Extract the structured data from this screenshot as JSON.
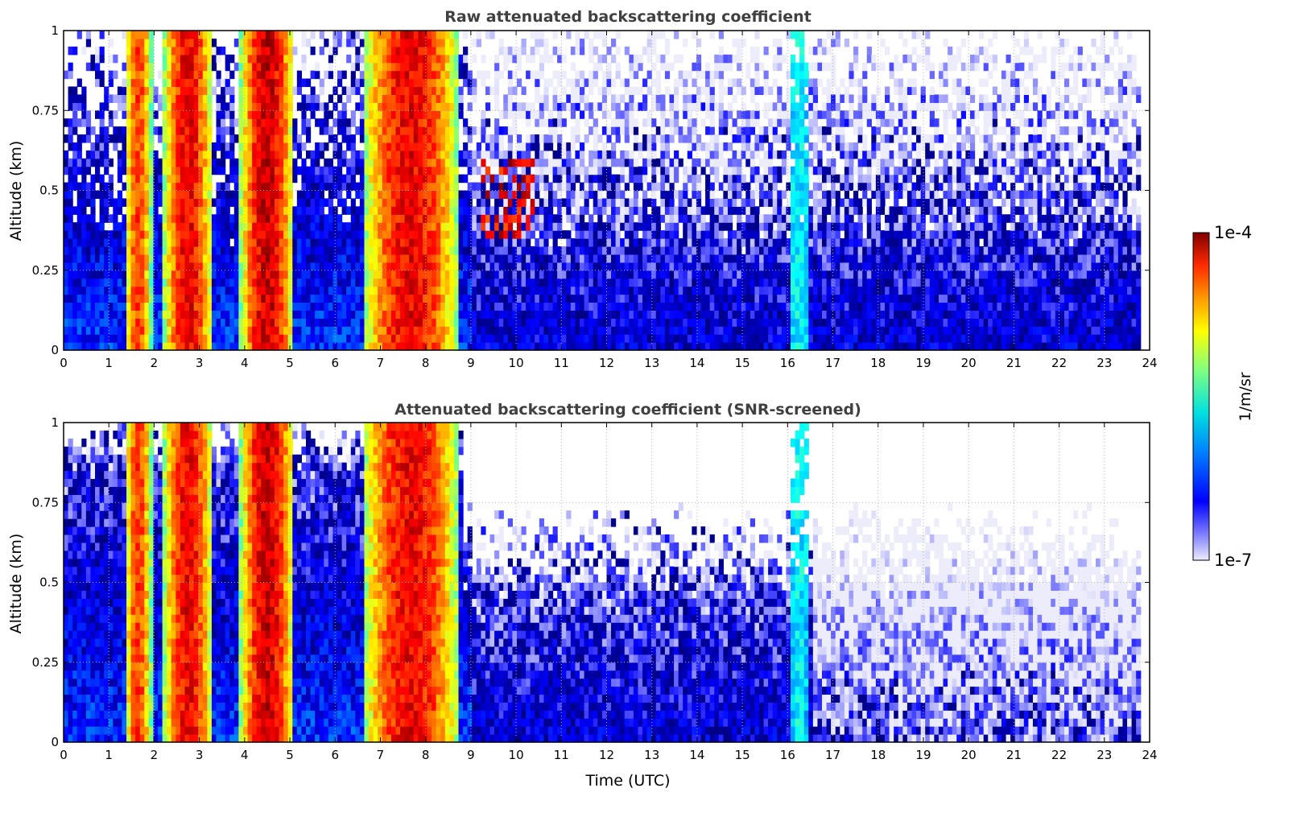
{
  "figure": {
    "colorbar": {
      "label": "1/m/sr",
      "max_label": "1e-4",
      "min_label": "1e-7",
      "scale": "log",
      "range": [
        1e-07,
        0.0001
      ],
      "colormap": "jet (levels from light lavender to dark red)"
    },
    "grid": "dotted"
  },
  "chart_data": [
    {
      "type": "heatmap",
      "title": "Raw attenuated backscattering coefficient",
      "xlabel": "",
      "ylabel": "Altitude (km)",
      "xlim": [
        0,
        24
      ],
      "ylim": [
        0,
        1
      ],
      "x_ticks": [
        "0",
        "1",
        "2",
        "3",
        "4",
        "5",
        "6",
        "7",
        "8",
        "9",
        "10",
        "11",
        "12",
        "13",
        "14",
        "15",
        "16",
        "17",
        "18",
        "19",
        "20",
        "21",
        "22",
        "23",
        "24"
      ],
      "y_ticks": [
        "0",
        "0.25",
        "0.5",
        "0.75",
        "1"
      ],
      "grid": true,
      "data_extent_x": [
        0,
        23.8
      ],
      "features": [
        {
          "kind": "cloud_column",
          "x_start": 1.35,
          "x_end": 1.95,
          "peak_log10": -4.5
        },
        {
          "kind": "cloud_column",
          "x_start": 2.2,
          "x_end": 3.3,
          "peak_log10": -4.3
        },
        {
          "kind": "cloud_column",
          "x_start": 3.9,
          "x_end": 5.1,
          "peak_log10": -4.2
        },
        {
          "kind": "cloud_column",
          "x_start": 6.6,
          "x_end": 8.75,
          "peak_log10": -4.3
        },
        {
          "kind": "cloud_column",
          "x_start": 16.05,
          "x_end": 16.45,
          "peak_log10": -5.7
        },
        {
          "kind": "noisy_strong_patch",
          "x_start": 9.2,
          "x_end": 10.4,
          "y_start": 0.35,
          "y_end": 0.6
        }
      ]
    },
    {
      "type": "heatmap",
      "title": "Attenuated backscattering coefficient (SNR-screened)",
      "xlabel": "Time (UTC)",
      "ylabel": "Altitude (km)",
      "xlim": [
        0,
        24
      ],
      "ylim": [
        0,
        1
      ],
      "x_ticks": [
        "0",
        "1",
        "2",
        "3",
        "4",
        "5",
        "6",
        "7",
        "8",
        "9",
        "10",
        "11",
        "12",
        "13",
        "14",
        "15",
        "16",
        "17",
        "18",
        "19",
        "20",
        "21",
        "22",
        "23",
        "24"
      ],
      "y_ticks": [
        "0",
        "0.25",
        "0.5",
        "0.75",
        "1"
      ],
      "grid": true,
      "data_extent_x": [
        0,
        23.8
      ],
      "features": [
        {
          "kind": "cloud_column",
          "x_start": 1.35,
          "x_end": 1.95,
          "peak_log10": -4.5
        },
        {
          "kind": "cloud_column",
          "x_start": 2.2,
          "x_end": 3.3,
          "peak_log10": -4.3
        },
        {
          "kind": "cloud_column",
          "x_start": 3.9,
          "x_end": 5.1,
          "peak_log10": -4.2
        },
        {
          "kind": "cloud_column",
          "x_start": 6.6,
          "x_end": 8.75,
          "peak_log10": -4.3
        },
        {
          "kind": "cloud_column",
          "x_start": 16.05,
          "x_end": 16.45,
          "peak_log10": -5.7
        },
        {
          "kind": "screened_region_top",
          "x_start": 8.8,
          "x_end": 23.8,
          "y_top_approx": 0.7
        }
      ]
    }
  ]
}
